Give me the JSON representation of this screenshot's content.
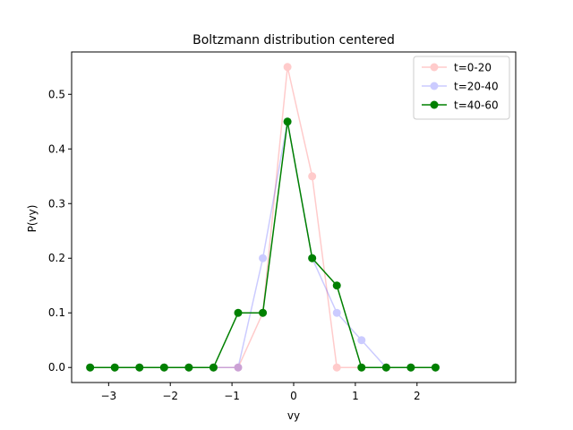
{
  "chart_data": {
    "type": "line",
    "title": "Boltzmann distribution centered",
    "xlabel": "vy",
    "ylabel": "P(vy)",
    "xlim": [
      -3.6,
      3.6
    ],
    "ylim": [
      -0.0275,
      0.5775
    ],
    "xticks": [
      -3,
      -2,
      -1,
      0,
      1,
      2
    ],
    "yticks": [
      0.0,
      0.1,
      0.2,
      0.3,
      0.4,
      0.5
    ],
    "grid": false,
    "legend_position": "top-right",
    "x": [
      -3.3,
      -2.9,
      -2.5,
      -2.1,
      -1.7,
      -1.3,
      -0.9,
      -0.5,
      -0.1,
      0.3,
      0.7,
      1.1,
      1.5,
      1.9,
      2.3
    ],
    "series": [
      {
        "name": "t=0-20",
        "color": "#ff0000",
        "alpha": 0.2,
        "values": [
          0,
          0,
          0,
          0,
          0,
          0,
          0,
          0.1,
          0.55,
          0.35,
          0,
          0,
          0,
          0,
          0
        ]
      },
      {
        "name": "t=20-40",
        "color": "#0000ff",
        "alpha": 0.2,
        "values": [
          0,
          0,
          0,
          0,
          0,
          0,
          0,
          0.2,
          0.45,
          0.2,
          0.1,
          0.05,
          0,
          0,
          0
        ]
      },
      {
        "name": "t=40-60",
        "color": "#008000",
        "alpha": 1.0,
        "values": [
          0,
          0,
          0,
          0,
          0,
          0,
          0.1,
          0.1,
          0.45,
          0.2,
          0.15,
          0,
          0,
          0,
          0
        ]
      }
    ]
  }
}
